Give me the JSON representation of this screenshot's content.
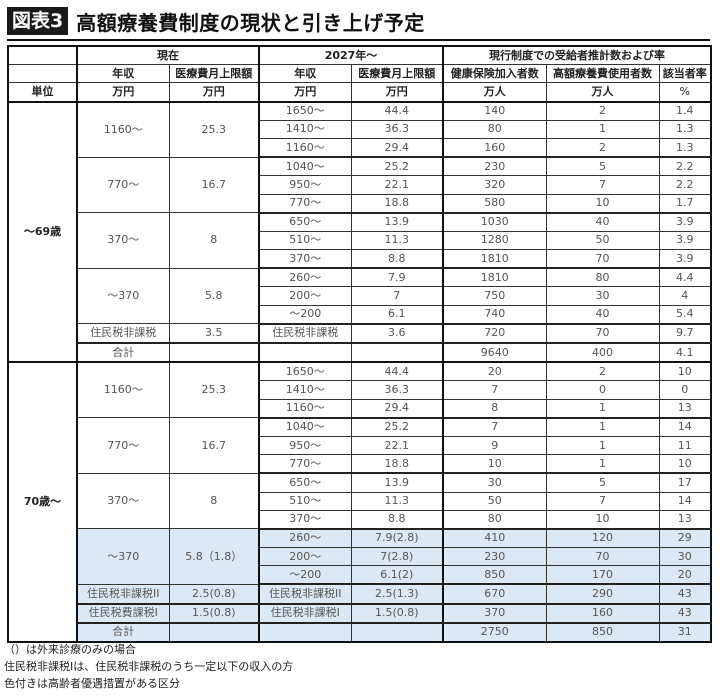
{
  "header": {
    "badge": "図表3",
    "title": "高額療養費制度の現状と引き上げ予定"
  },
  "table": {
    "groups": {
      "current": "現在",
      "from2027": "2027年～",
      "estimates": "現行制度での受給者推計数および率"
    },
    "columns": {
      "income": "年収",
      "cap": "医療費月上限額",
      "income2027": "年収",
      "cap2027": "医療費月上限額",
      "insured": "健康保険加入者数",
      "users": "高額療養費使用者数",
      "rate": "該当者率"
    },
    "units": {
      "label": "単位",
      "income": "万円",
      "cap": "万円",
      "income2027": "万円",
      "cap2027": "万円",
      "insured": "万人",
      "users": "万人",
      "rate": "%"
    },
    "sections": [
      {
        "age": "～69歳",
        "bands": [
          {
            "income": "1160～",
            "cap": "25.3",
            "rows": [
              {
                "income2027": "1650～",
                "cap2027": "44.4",
                "insured": "140",
                "users": "2",
                "rate": "1.4"
              },
              {
                "income2027": "1410～",
                "cap2027": "36.3",
                "insured": "80",
                "users": "1",
                "rate": "1.3"
              },
              {
                "income2027": "1160～",
                "cap2027": "29.4",
                "insured": "160",
                "users": "2",
                "rate": "1.3"
              }
            ]
          },
          {
            "income": "770～",
            "cap": "16.7",
            "rows": [
              {
                "income2027": "1040～",
                "cap2027": "25.2",
                "insured": "230",
                "users": "5",
                "rate": "2.2"
              },
              {
                "income2027": "950～",
                "cap2027": "22.1",
                "insured": "320",
                "users": "7",
                "rate": "2.2"
              },
              {
                "income2027": "770～",
                "cap2027": "18.8",
                "insured": "580",
                "users": "10",
                "rate": "1.7"
              }
            ]
          },
          {
            "income": "370～",
            "cap": "8",
            "rows": [
              {
                "income2027": "650～",
                "cap2027": "13.9",
                "insured": "1030",
                "users": "40",
                "rate": "3.9"
              },
              {
                "income2027": "510～",
                "cap2027": "11.3",
                "insured": "1280",
                "users": "50",
                "rate": "3.9"
              },
              {
                "income2027": "370～",
                "cap2027": "8.8",
                "insured": "1810",
                "users": "70",
                "rate": "3.9"
              }
            ]
          },
          {
            "income": "～370",
            "cap": "5.8",
            "rows": [
              {
                "income2027": "260～",
                "cap2027": "7.9",
                "insured": "1810",
                "users": "80",
                "rate": "4.4"
              },
              {
                "income2027": "200～",
                "cap2027": "7",
                "insured": "750",
                "users": "30",
                "rate": "4"
              },
              {
                "income2027": "～200",
                "cap2027": "6.1",
                "insured": "740",
                "users": "40",
                "rate": "5.4"
              }
            ]
          },
          {
            "income": "住民税非課税",
            "cap": "3.5",
            "rows": [
              {
                "income2027": "住民税非課税",
                "cap2027": "3.6",
                "insured": "720",
                "users": "70",
                "rate": "9.7"
              }
            ]
          }
        ],
        "total": {
          "label": "合計",
          "insured": "9640",
          "users": "400",
          "rate": "4.1"
        }
      },
      {
        "age": "70歳～",
        "bands": [
          {
            "income": "1160～",
            "cap": "25.3",
            "rows": [
              {
                "income2027": "1650～",
                "cap2027": "44.4",
                "insured": "20",
                "users": "2",
                "rate": "10"
              },
              {
                "income2027": "1410～",
                "cap2027": "36.3",
                "insured": "7",
                "users": "0",
                "rate": "0"
              },
              {
                "income2027": "1160～",
                "cap2027": "29.4",
                "insured": "8",
                "users": "1",
                "rate": "13"
              }
            ]
          },
          {
            "income": "770～",
            "cap": "16.7",
            "rows": [
              {
                "income2027": "1040～",
                "cap2027": "25.2",
                "insured": "7",
                "users": "1",
                "rate": "14"
              },
              {
                "income2027": "950～",
                "cap2027": "22.1",
                "insured": "9",
                "users": "1",
                "rate": "11"
              },
              {
                "income2027": "770～",
                "cap2027": "18.8",
                "insured": "10",
                "users": "1",
                "rate": "10"
              }
            ]
          },
          {
            "income": "370～",
            "cap": "8",
            "rows": [
              {
                "income2027": "650～",
                "cap2027": "13.9",
                "insured": "30",
                "users": "5",
                "rate": "17"
              },
              {
                "income2027": "510～",
                "cap2027": "11.3",
                "insured": "50",
                "users": "7",
                "rate": "14"
              },
              {
                "income2027": "370～",
                "cap2027": "8.8",
                "insured": "80",
                "users": "10",
                "rate": "13"
              }
            ]
          },
          {
            "income": "～370",
            "cap": "5.8（1.8）",
            "rows": [
              {
                "income2027": "260～",
                "cap2027": "7.9(2.8)",
                "insured": "410",
                "users": "120",
                "rate": "29"
              },
              {
                "income2027": "200～",
                "cap2027": "7(2.8)",
                "insured": "230",
                "users": "70",
                "rate": "30"
              },
              {
                "income2027": "～200",
                "cap2027": "6.1(2)",
                "insured": "850",
                "users": "170",
                "rate": "20"
              }
            ]
          },
          {
            "income": "住民税非課税II",
            "cap": "2.5(0.8)",
            "rows": [
              {
                "income2027": "住民税非課税II",
                "cap2027": "2.5(1.3)",
                "insured": "670",
                "users": "290",
                "rate": "43"
              }
            ]
          },
          {
            "income": "住民税費課税I",
            "cap": "1.5(0.8)",
            "rows": [
              {
                "income2027": "住民税非課税I",
                "cap2027": "1.5(0.8)",
                "insured": "370",
                "users": "160",
                "rate": "43"
              }
            ]
          }
        ],
        "total": {
          "label": "合計",
          "insured": "2750",
          "users": "850",
          "rate": "31"
        }
      }
    ]
  },
  "notes": [
    "（）は外来診療のみの場合",
    "住民税非課税Iは、住民税非課税のうち一定以下の収入の方",
    "色付きは高齢者優遇措置がある区分"
  ],
  "colors": {
    "shade": "#dbe8f6",
    "badge_bg": "#1a1a1a"
  }
}
